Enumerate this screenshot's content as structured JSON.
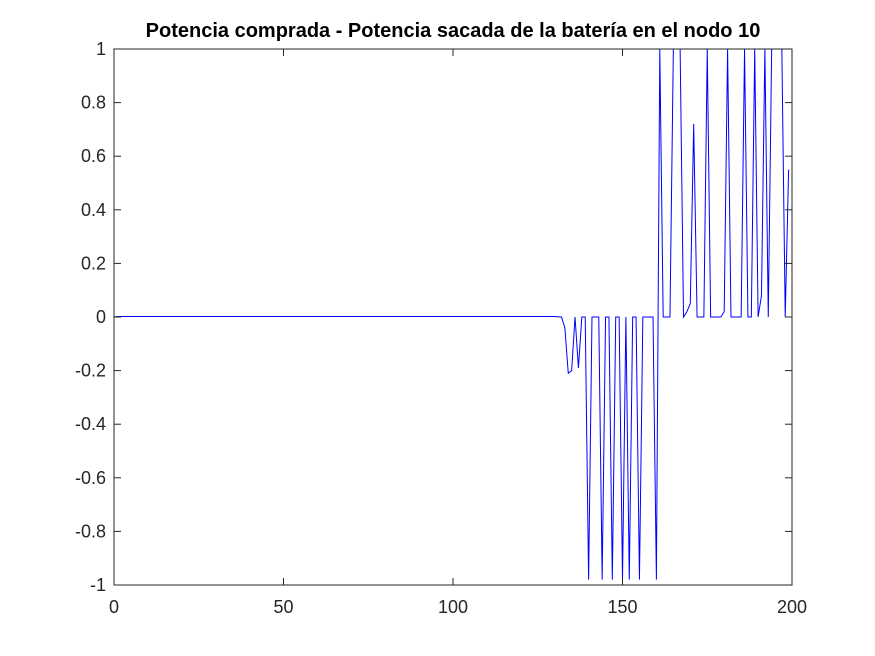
{
  "chart_data": {
    "type": "line",
    "title": "Potencia comprada - Potencia sacada de la batería en el nodo 10",
    "xlabel": "",
    "ylabel": "",
    "xlim": [
      0,
      200
    ],
    "ylim": [
      -1,
      1
    ],
    "grid": false,
    "x_ticks": [
      "0",
      "50",
      "100",
      "150",
      "200"
    ],
    "y_ticks": [
      "-1",
      "-0.8",
      "-0.6",
      "-0.4",
      "-0.2",
      "0",
      "0.2",
      "0.4",
      "0.6",
      "0.8",
      "1"
    ],
    "series": [
      {
        "color": "#0000ff",
        "points": [
          [
            0,
            0
          ],
          [
            1,
            0.002
          ],
          [
            10,
            0.002
          ],
          [
            50,
            0.002
          ],
          [
            100,
            0.002
          ],
          [
            130,
            0.002
          ],
          [
            132,
            0.0
          ],
          [
            133,
            -0.04
          ],
          [
            134,
            -0.21
          ],
          [
            135,
            -0.2
          ],
          [
            136,
            0.0
          ],
          [
            137,
            -0.19
          ],
          [
            138,
            0.0
          ],
          [
            139,
            0.0
          ],
          [
            140,
            -0.98
          ],
          [
            141,
            0.0
          ],
          [
            142,
            0.0
          ],
          [
            143,
            0.0
          ],
          [
            144,
            -0.98
          ],
          [
            145,
            0.0
          ],
          [
            146,
            0.0
          ],
          [
            147,
            -0.98
          ],
          [
            148,
            0.0
          ],
          [
            149,
            0.0
          ],
          [
            150,
            -0.98
          ],
          [
            151,
            0.0
          ],
          [
            152,
            -0.98
          ],
          [
            153,
            0.0
          ],
          [
            154,
            0.0
          ],
          [
            155,
            -0.98
          ],
          [
            156,
            0.0
          ],
          [
            157,
            0.0
          ],
          [
            158,
            0.0
          ],
          [
            159,
            0.0
          ],
          [
            160,
            -0.98
          ],
          [
            161,
            1.0
          ],
          [
            162,
            0.0
          ],
          [
            163,
            0.0
          ],
          [
            164,
            0.0
          ],
          [
            165,
            1.0
          ],
          [
            166,
            1.0
          ],
          [
            167,
            1.0
          ],
          [
            168,
            0.0
          ],
          [
            169,
            0.02
          ],
          [
            170,
            0.05
          ],
          [
            171,
            0.72
          ],
          [
            172,
            0.0
          ],
          [
            173,
            0.0
          ],
          [
            174,
            0.0
          ],
          [
            175,
            1.0
          ],
          [
            176,
            0.0
          ],
          [
            177,
            0.0
          ],
          [
            178,
            0.0
          ],
          [
            179,
            0.0
          ],
          [
            180,
            0.02
          ],
          [
            181,
            1.0
          ],
          [
            182,
            0.0
          ],
          [
            183,
            0.0
          ],
          [
            184,
            0.0
          ],
          [
            185,
            0.0
          ],
          [
            186,
            1.0
          ],
          [
            187,
            0.0
          ],
          [
            188,
            0.0
          ],
          [
            189,
            1.0
          ],
          [
            190,
            0.0
          ],
          [
            191,
            0.08
          ],
          [
            192,
            1.0
          ],
          [
            193,
            0.0
          ],
          [
            194,
            1.0
          ],
          [
            195,
            1.0
          ],
          [
            196,
            1.0
          ],
          [
            197,
            1.0
          ],
          [
            198,
            0.0
          ],
          [
            199,
            0.55
          ]
        ]
      }
    ]
  }
}
